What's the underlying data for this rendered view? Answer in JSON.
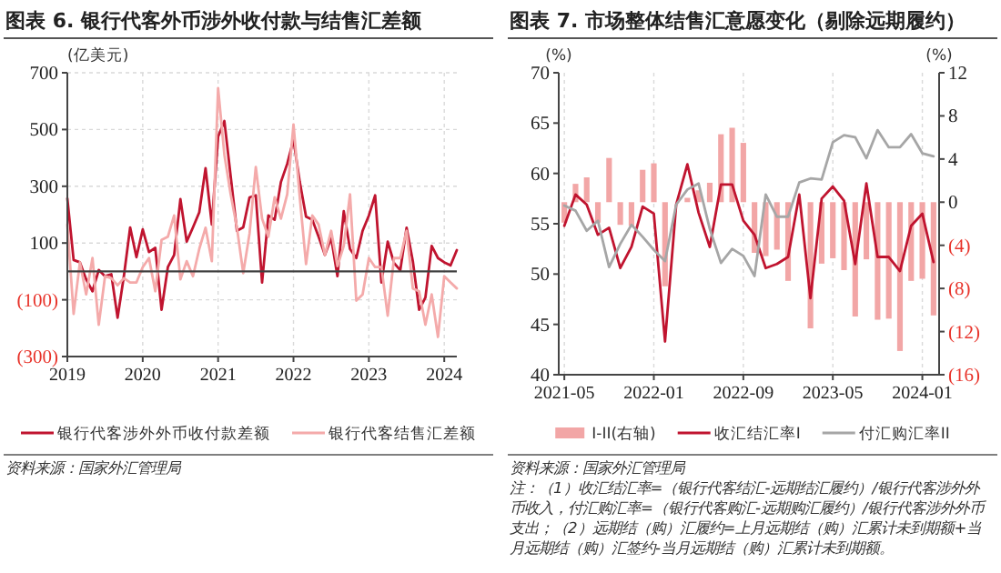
{
  "chart_data": [
    {
      "type": "line",
      "title": "图表 6. 银行代客外币涉外收付款与结售汇差额",
      "ylabel": "(亿美元)",
      "x": [
        "2019-01",
        "2019-02",
        "2019-03",
        "2019-04",
        "2019-05",
        "2019-06",
        "2019-07",
        "2019-08",
        "2019-09",
        "2019-10",
        "2019-11",
        "2019-12",
        "2020-01",
        "2020-02",
        "2020-03",
        "2020-04",
        "2020-05",
        "2020-06",
        "2020-07",
        "2020-08",
        "2020-09",
        "2020-10",
        "2020-11",
        "2020-12",
        "2021-01",
        "2021-02",
        "2021-03",
        "2021-04",
        "2021-05",
        "2021-06",
        "2021-07",
        "2021-08",
        "2021-09",
        "2021-10",
        "2021-11",
        "2021-12",
        "2022-01",
        "2022-02",
        "2022-03",
        "2022-04",
        "2022-05",
        "2022-06",
        "2022-07",
        "2022-08",
        "2022-09",
        "2022-10",
        "2022-11",
        "2022-12",
        "2023-01",
        "2023-02",
        "2023-03",
        "2023-04",
        "2023-05",
        "2023-06",
        "2023-07",
        "2023-08",
        "2023-09",
        "2023-10",
        "2023-11",
        "2023-12",
        "2024-01",
        "2024-02",
        "2024-03"
      ],
      "series": [
        {
          "name": "银行代客涉外外币收付款差额",
          "color": "#c0142f",
          "values": [
            257,
            40,
            32,
            -28,
            -70,
            5,
            -17,
            -10,
            -163,
            -17,
            155,
            50,
            148,
            68,
            83,
            -135,
            15,
            58,
            255,
            105,
            155,
            208,
            364,
            165,
            475,
            530,
            336,
            143,
            155,
            261,
            268,
            -39,
            197,
            182,
            315,
            379,
            464,
            315,
            193,
            182,
            122,
            58,
            118,
            -17,
            212,
            79,
            47,
            143,
            197,
            268,
            -39,
            105,
            30,
            4,
            154,
            36,
            -135,
            -92,
            90,
            47,
            32,
            21,
            75
          ]
        },
        {
          "name": "银行代客结售汇差额",
          "color": "#f4aaaa",
          "values": [
            165,
            -150,
            32,
            -81,
            47,
            -188,
            -17,
            -24,
            -49,
            -24,
            -39,
            -39,
            15,
            47,
            -70,
            111,
            122,
            197,
            -28,
            36,
            -17,
            79,
            154,
            36,
            646,
            411,
            272,
            154,
            -6,
            133,
            368,
            186,
            122,
            261,
            186,
            272,
            518,
            261,
            26,
            197,
            165,
            58,
            143,
            19,
            90,
            272,
            -103,
            -81,
            47,
            15,
            15,
            -156,
            47,
            47,
            143,
            -60,
            -70,
            -188,
            -81,
            -231,
            -17,
            -39,
            -60
          ]
        }
      ],
      "xlim": [
        "2019-01",
        "2024-03"
      ],
      "xticks": [
        "2019",
        "2020",
        "2021",
        "2022",
        "2023",
        "2024"
      ],
      "ylim": [
        -300,
        700
      ],
      "yticks": [
        {
          "value": -300,
          "label": "(300)"
        },
        {
          "value": -100,
          "label": "(100)"
        },
        100,
        300,
        500,
        700
      ],
      "ref_lines": [
        {
          "axis": "y",
          "value": 0,
          "color": "#404040"
        }
      ],
      "grid": true,
      "legend": "bottom",
      "annotations": [
        "资料来源：国家外汇管理局"
      ]
    },
    {
      "type": "bar",
      "title": "图表 7. 市场整体结售汇意愿变化（剔除远期履约）",
      "ylabel": "(%)",
      "y2label": "(%)",
      "categories": [
        "2021-05",
        null,
        null,
        null,
        null,
        null,
        null,
        null,
        "2022-01",
        null,
        null,
        null,
        null,
        null,
        null,
        null,
        "2022-09",
        null,
        null,
        null,
        null,
        null,
        null,
        null,
        "2023-05",
        null,
        null,
        null,
        null,
        null,
        null,
        null,
        "2024-01",
        null
      ],
      "series": [
        {
          "name": "I-II(右轴)",
          "axis": "y2",
          "color": "#f2a6a6",
          "values": [
            -1.9,
            1.7,
            2.3,
            -1.9,
            4.1,
            -2.1,
            -2.2,
            3.0,
            3.6,
            -7.8,
            null,
            0.4,
            1.1,
            1.8,
            6.3,
            6.9,
            5.5,
            -4.7,
            -5.0,
            -4.4,
            -7.3,
            null,
            -11.7,
            -5.7,
            -5.2,
            -6.3,
            -10.6,
            -5.3,
            -10.9,
            -10.8,
            -13.8,
            -7.3,
            -7.1,
            -10.5
          ]
        },
        {
          "name": "收汇结汇率I",
          "type": "line",
          "color": "#c0142f",
          "values": [
            54.8,
            57.9,
            56.9,
            53.9,
            54.6,
            50.6,
            52.7,
            56.7,
            56.0,
            43.3,
            56.9,
            60.9,
            56.1,
            52.7,
            58.9,
            58.9,
            55.3,
            53.9,
            50.6,
            51.0,
            51.7,
            57.9,
            47.6,
            57.5,
            58.7,
            57.3,
            51.0,
            59.0,
            51.7,
            51.7,
            50.3,
            54.8,
            56.0,
            51.2
          ]
        },
        {
          "name": "付汇购汇率II",
          "type": "line",
          "color": "#a6a6a6",
          "values": [
            56.8,
            56.3,
            54.3,
            55.3,
            50.7,
            53.0,
            54.9,
            53.7,
            52.4,
            51.3,
            56.9,
            58.4,
            59.0,
            54.5,
            51.1,
            52.5,
            51.8,
            49.8,
            57.9,
            55.7,
            55.7,
            59.1,
            59.5,
            59.4,
            63.1,
            63.8,
            63.6,
            61.5,
            64.3,
            62.6,
            62.6,
            63.9,
            62.0,
            61.7
          ]
        }
      ],
      "ylim": [
        40,
        70
      ],
      "yticks": [
        40,
        45,
        50,
        55,
        60,
        65,
        70
      ],
      "y2lim": [
        -16,
        12
      ],
      "y2ticks": [
        {
          "value": -16,
          "label": "(16)"
        },
        {
          "value": -12,
          "label": "(12)"
        },
        {
          "value": -8,
          "label": "(8)"
        },
        {
          "value": -4,
          "label": "(4)"
        },
        0,
        4,
        8,
        12
      ],
      "grid": "x",
      "legend": "bottom",
      "annotations": [
        "资料来源：国家外汇管理局",
        "注：（1）收汇结汇率=（银行代客结汇-远期结汇履约）/银行代客涉外外币收入，付汇购汇率=（银行代客购汇-远期购汇履约）/银行代客涉外外币支出；（2）远期结（购）汇履约=上月远期结（购）汇累计未到期额+当月远期结（购）汇签约-当月远期结（购）汇累计未到期额。"
      ]
    }
  ]
}
